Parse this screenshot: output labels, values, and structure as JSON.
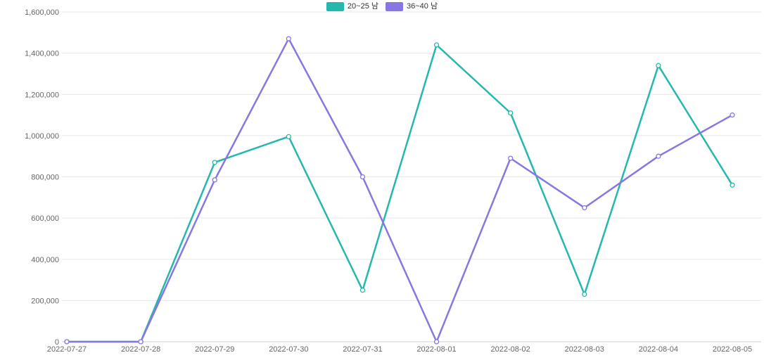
{
  "chart_data": {
    "type": "line",
    "x": [
      "2022-07-27",
      "2022-07-28",
      "2022-07-29",
      "2022-07-30",
      "2022-07-31",
      "2022-08-01",
      "2022-08-02",
      "2022-08-03",
      "2022-08-04",
      "2022-08-05"
    ],
    "series": [
      {
        "name": "20~25 남",
        "color": "#25b8ac",
        "values": [
          0,
          0,
          870000,
          995000,
          250000,
          1440000,
          1110000,
          230000,
          1340000,
          760000
        ]
      },
      {
        "name": "36~40 남",
        "color": "#8877e0",
        "values": [
          0,
          0,
          785000,
          1470000,
          800000,
          0,
          890000,
          650000,
          900000,
          1100000
        ]
      }
    ],
    "title": "",
    "xlabel": "",
    "ylabel": "",
    "ylim": [
      0,
      1600000
    ],
    "y_tick_step": 200000,
    "grid": "horizontal",
    "legend_position": "top-center",
    "colors": {
      "gridline": "#e8e8e8",
      "axis_line": "#cccccc",
      "tick_label": "#666666",
      "background": "#ffffff"
    },
    "marker": "hollow-circle"
  }
}
